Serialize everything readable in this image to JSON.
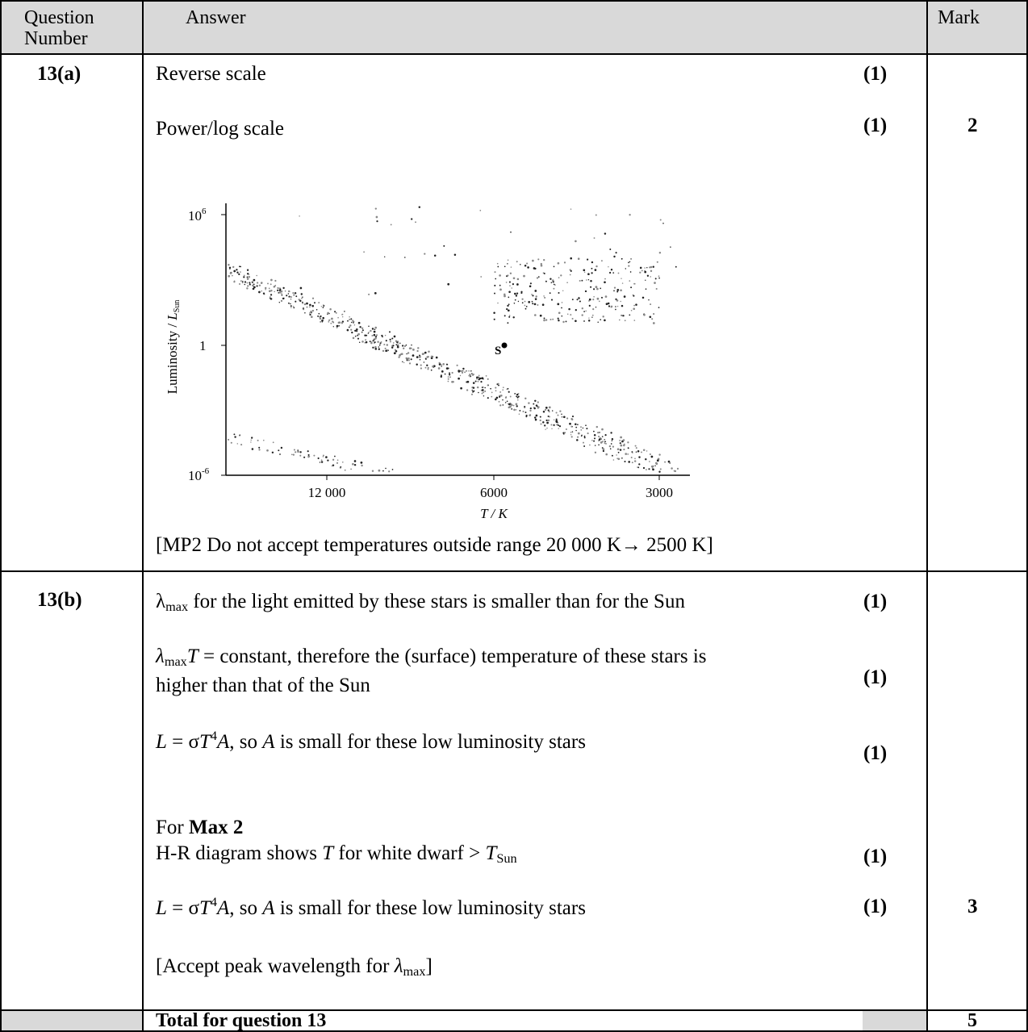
{
  "headers": {
    "question": "Question Number",
    "question_l1": "Question",
    "question_l2": "Number",
    "answer": "Answer",
    "mark": "Mark"
  },
  "part_a": {
    "qnum": "13(a)",
    "line1": "Reverse scale",
    "line1_mark": "(1)",
    "line2": "Power/log scale",
    "line2_mark": "(1)",
    "total_mark": "2",
    "note": "[MP2 Do not accept temperatures outside range 20 000 K→ 2500 K]"
  },
  "part_b": {
    "qnum": "13(b)",
    "l1_lambda": "λ",
    "l1_sub": "max",
    "l1_rest": " for the light emitted by these stars is smaller than for the Sun",
    "l1_mark": "(1)",
    "l2_lambda": "λ",
    "l2_sub": "max",
    "l2_T": "T",
    "l2_rest": " = constant, therefore the (surface) temperature of these stars is",
    "l2b": "higher than that of the Sun",
    "l2_mark": "(1)",
    "l3_eq_a": "L",
    "l3_eq_b": " = σ",
    "l3_eq_c": "T",
    "l3_sup": "4",
    "l3_eq_d": "A",
    "l3_rest_a": ", so ",
    "l3_rest_A": "A",
    "l3_rest_b": " is small for these low luminosity stars",
    "l3_mark": "(1)",
    "max_prefix": "For ",
    "max_bold": "Max 2",
    "l4_a": "H-R diagram shows ",
    "l4_T": "T",
    "l4_b": " for white dwarf > ",
    "l4_T2": "T",
    "l4_sub": "Sun",
    "l4_mark": "(1)",
    "l5_mark": "(1)",
    "total_mark": "3",
    "l6_a": "[Accept peak wavelength for ",
    "l6_lambda": "λ",
    "l6_sub": "max",
    "l6_b": "]"
  },
  "total": {
    "label": "Total for question 13",
    "mark": "5"
  },
  "chart_data": {
    "type": "scatter",
    "title": "",
    "xlabel": "T / K",
    "ylabel": "Luminosity / L Sun",
    "ylabel_main": "Luminosity / ",
    "ylabel_L": "L",
    "ylabel_sub": "Sun",
    "x_ticks": [
      "12 000",
      "6000",
      "3000"
    ],
    "y_ticks": [
      "10^6",
      "1",
      "10^-6"
    ],
    "y_tick_base": "10",
    "y_tick_top_exp": "6",
    "y_tick_bottom_exp": "-6",
    "y_tick_mid": "1",
    "x_scale": "log, reversed",
    "y_scale": "log",
    "sun_label": "S",
    "sun_point": {
      "T": 5800,
      "L": 1
    },
    "series": [
      {
        "region": "main sequence",
        "T_range": [
          30000,
          2800
        ],
        "L_range": [
          1000000,
          1e-06
        ]
      },
      {
        "region": "giants",
        "T_range": [
          6000,
          3000
        ],
        "L_range": [
          10,
          10000
        ]
      },
      {
        "region": "white dwarfs",
        "T_range": [
          20000,
          9000
        ],
        "L_range": [
          0.0001,
          1e-06
        ]
      }
    ]
  }
}
